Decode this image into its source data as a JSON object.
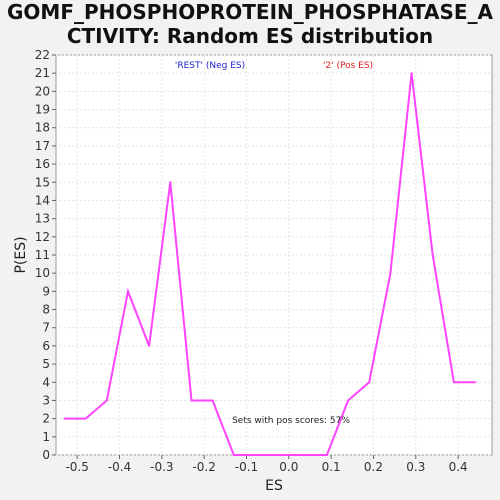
{
  "title_lines": [
    "GOMF_PHOSPHOPROTEIN_PHOSPHATASE_A",
    "CTIVITY: Random ES distribution"
  ],
  "chart_data": {
    "type": "line",
    "title": "GOMF_PHOSPHOPROTEIN_PHOSPHATASE_ACTIVITY: Random ES distribution",
    "xlabel": "ES",
    "ylabel": "P(ES)",
    "xlim": [
      -0.55,
      0.48
    ],
    "ylim": [
      0,
      22
    ],
    "x_ticks": [
      -0.5,
      -0.4,
      -0.3,
      -0.2,
      -0.1,
      0.0,
      0.1,
      0.2,
      0.3,
      0.4
    ],
    "x_tick_labels": [
      "-0.5",
      "-0.4",
      "-0.3",
      "-0.2",
      "-0.1",
      "0.0",
      "0.1",
      "0.2",
      "0.3",
      "0.4"
    ],
    "y_ticks": [
      0,
      1,
      2,
      3,
      4,
      5,
      6,
      7,
      8,
      9,
      10,
      11,
      12,
      13,
      14,
      15,
      16,
      17,
      18,
      19,
      20,
      21,
      22
    ],
    "grid": true,
    "series": [
      {
        "color": "#ff44ff",
        "x": [
          -0.53,
          -0.48,
          -0.43,
          -0.38,
          -0.33,
          -0.28,
          -0.23,
          -0.18,
          -0.13,
          -0.08,
          -0.03,
          0.02,
          0.07,
          0.09,
          0.14,
          0.19,
          0.24,
          0.29,
          0.34,
          0.39,
          0.44
        ],
        "y": [
          2,
          2,
          3,
          9,
          6,
          15,
          3,
          3,
          0,
          0,
          0,
          0,
          0,
          0,
          3,
          4,
          10,
          21,
          11,
          4,
          4
        ]
      }
    ],
    "legend": [
      {
        "label": "'REST' (Neg ES)",
        "color": "#2222cc"
      },
      {
        "label": "'2' (Pos ES)",
        "color": "#dd2222"
      }
    ],
    "legend_placement": "top",
    "annotation": "Sets with pos scores: 57%"
  }
}
